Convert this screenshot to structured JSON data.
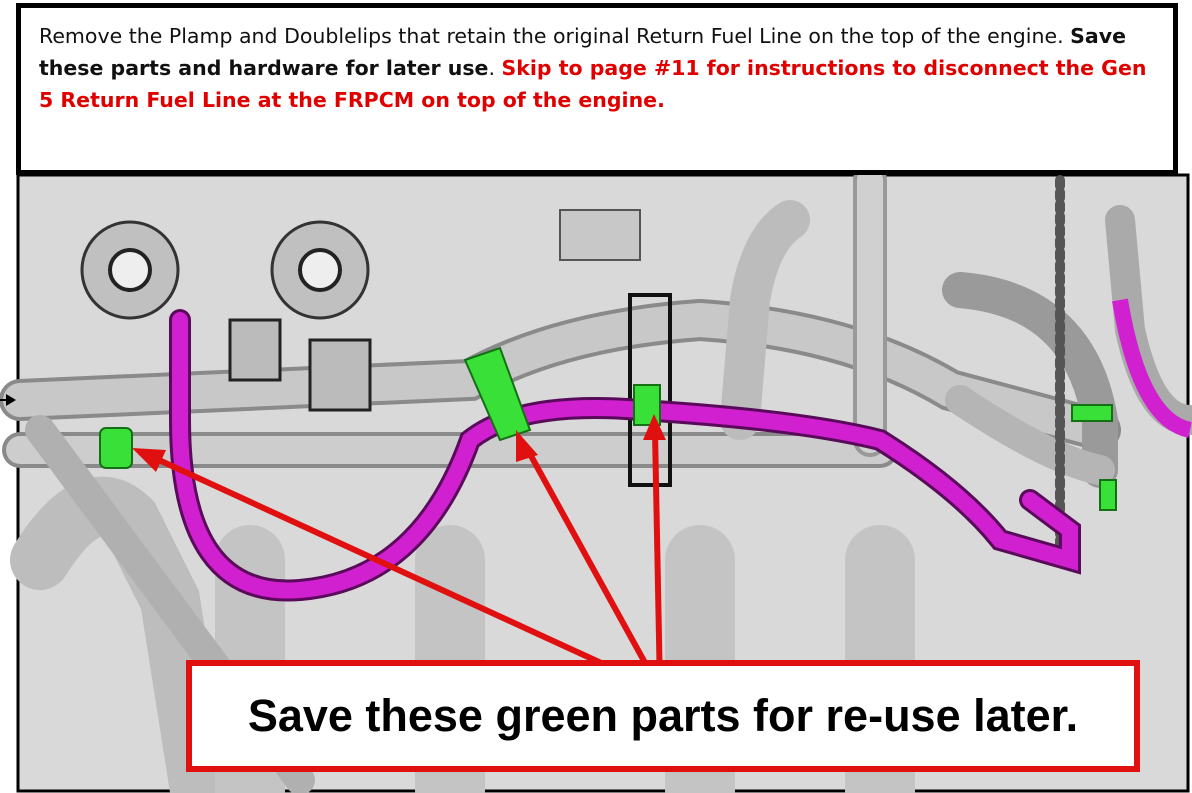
{
  "instruction": {
    "text_1": "Remove the Plamp and Doublelips that retain the original Return Fuel Line on the top of the engine. ",
    "bold": "Save these parts and hardware for later use",
    "text_2": ". ",
    "red": "Skip to page #11 for instructions to disconnect the Gen 5 Return Fuel Line at the FRPCM on top of the engine."
  },
  "callout": "Save these green parts for re-use later."
}
